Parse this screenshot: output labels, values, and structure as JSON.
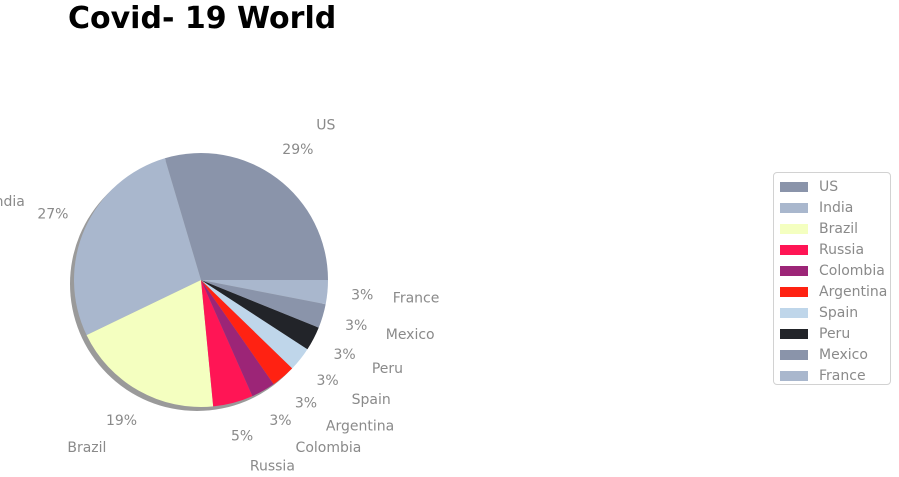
{
  "chart_data": {
    "type": "pie",
    "title": "Covid- 19 World",
    "slices": [
      {
        "label": "US",
        "value": 29,
        "pct_label": "29%",
        "color": "#8a94aa"
      },
      {
        "label": "India",
        "value": 27,
        "pct_label": "27%",
        "color": "#a9b7cd"
      },
      {
        "label": "Brazil",
        "value": 19,
        "pct_label": "19%",
        "color": "#f4ffc0"
      },
      {
        "label": "Russia",
        "value": 5,
        "pct_label": "5%",
        "color": "#ff1555"
      },
      {
        "label": "Colombia",
        "value": 3,
        "pct_label": "3%",
        "color": "#9c2577"
      },
      {
        "label": "Argentina",
        "value": 3,
        "pct_label": "3%",
        "color": "#ff2212"
      },
      {
        "label": "Spain",
        "value": 3,
        "pct_label": "3%",
        "color": "#bfd6ea"
      },
      {
        "label": "Peru",
        "value": 3,
        "pct_label": "3%",
        "color": "#222429"
      },
      {
        "label": "Mexico",
        "value": 3,
        "pct_label": "3%",
        "color": "#8a94aa"
      },
      {
        "label": "France",
        "value": 3,
        "pct_label": "3%",
        "color": "#a9b7cd"
      }
    ],
    "start_angle_deg": 0,
    "direction": "counterclockwise",
    "shadow": true,
    "legend_placement": "right"
  }
}
